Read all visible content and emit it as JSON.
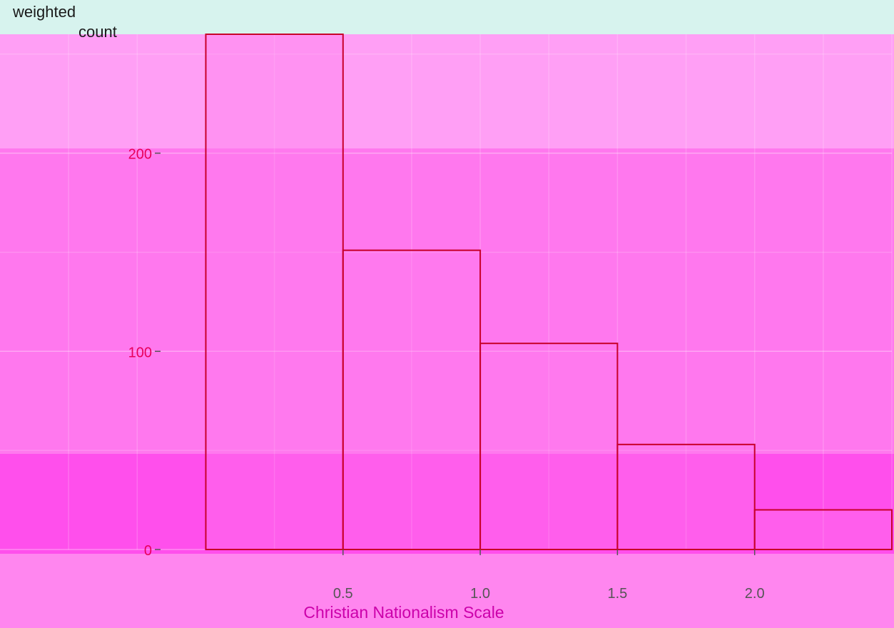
{
  "chart_data": {
    "type": "bar",
    "title": "",
    "xlabel": "Christian Nationalism Scale",
    "ylabel_lines": [
      "weighted",
      "count"
    ],
    "y_ticks": [
      "0",
      "100",
      "200"
    ],
    "x_ticks": [
      "0.5",
      "1.0",
      "1.5",
      "2.0"
    ],
    "bins": [
      {
        "x_start": 0.0,
        "x_end": 0.5,
        "value": 260
      },
      {
        "x_start": 0.5,
        "x_end": 1.0,
        "value": 151
      },
      {
        "x_start": 1.0,
        "x_end": 1.5,
        "value": 104
      },
      {
        "x_start": 1.5,
        "x_end": 2.0,
        "value": 53
      },
      {
        "x_start": 2.0,
        "x_end": 2.5,
        "value": 20
      }
    ],
    "xlim": [
      -0.75,
      2.5
    ],
    "ylim": [
      0,
      260
    ],
    "grid": true,
    "colors": {
      "background": "#ff9bf2",
      "bar_fill": "#ff7aee",
      "bar_outline": "#c8002a",
      "tick_text": "#e8005a",
      "axis_title": "#cc00aa"
    }
  }
}
